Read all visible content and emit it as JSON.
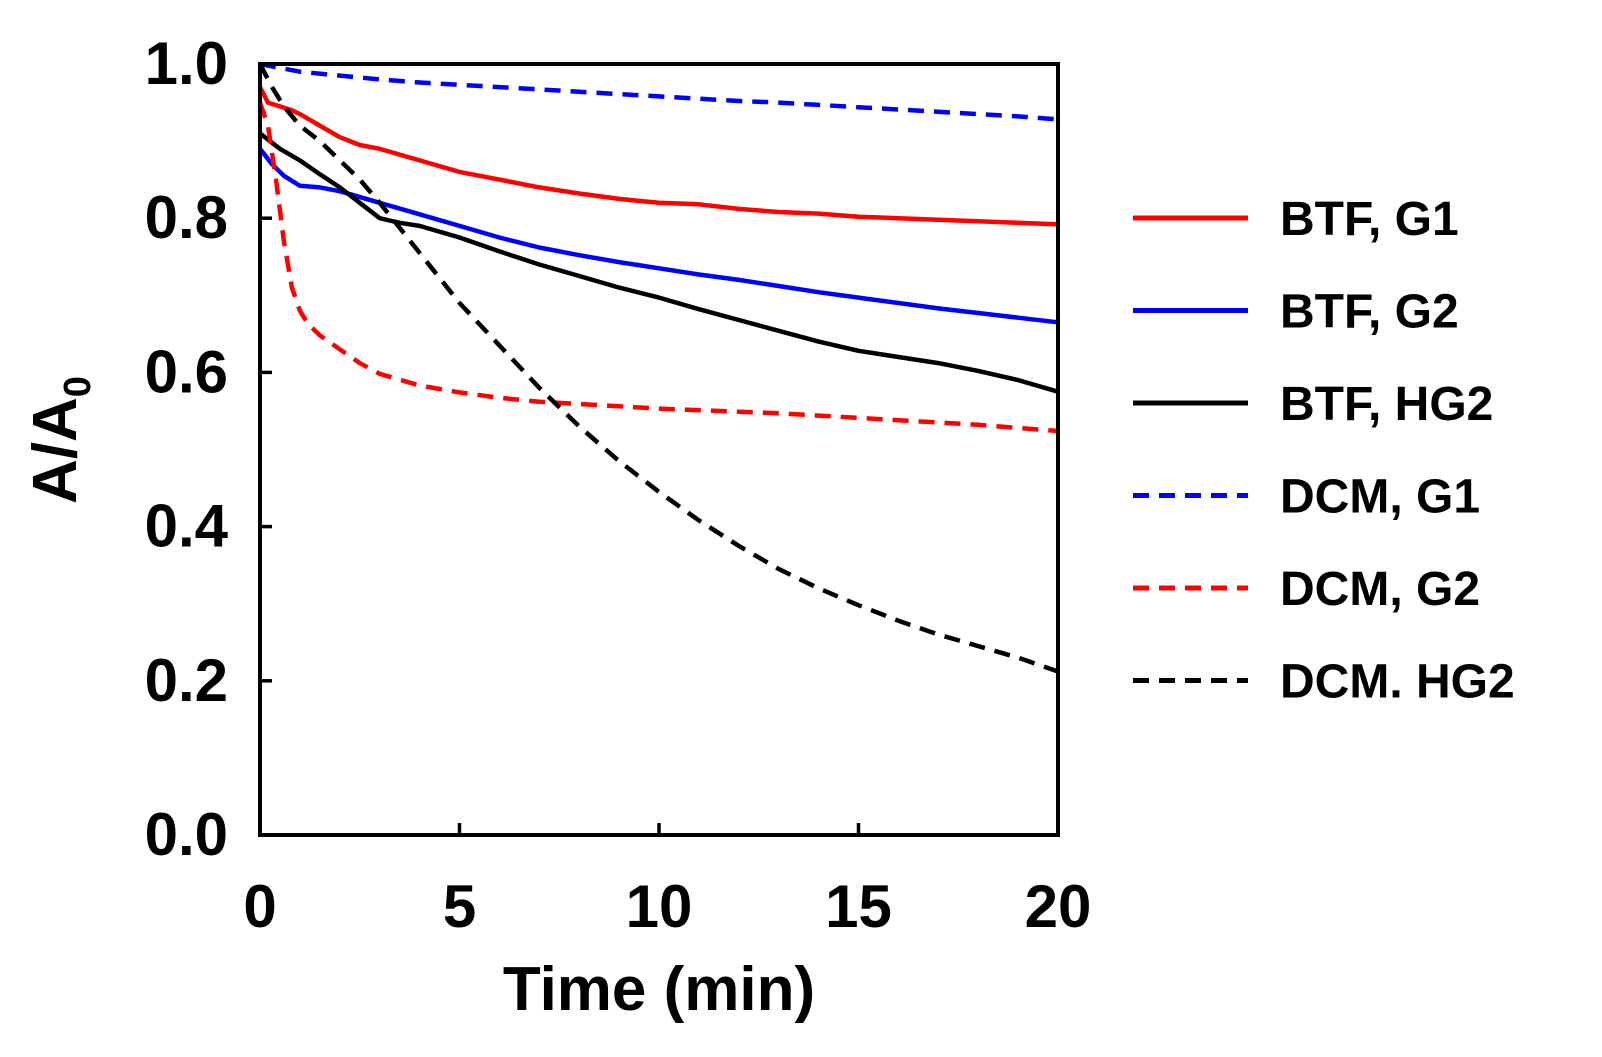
{
  "chart_data": {
    "type": "line",
    "title": "",
    "xlabel": "Time (min)",
    "ylabel_main": "A/A",
    "ylabel_sub": "0",
    "xlim": [
      0,
      20
    ],
    "ylim": [
      0,
      1.0
    ],
    "xticks": [
      0,
      5,
      10,
      15,
      20
    ],
    "xtick_labels": [
      "0",
      "5",
      "10",
      "15",
      "20"
    ],
    "yticks": [
      0,
      0.2,
      0.4,
      0.6,
      0.8,
      1.0
    ],
    "ytick_labels": [
      "0.0",
      "0.2",
      "0.4",
      "0.6",
      "0.8",
      "1.0"
    ],
    "grid": false,
    "legend_position": "right",
    "series": [
      {
        "name": "BTF, G1",
        "color": "#ff0000",
        "dash": "solid",
        "x": [
          0,
          0.2,
          0.5,
          0.8,
          1,
          1.5,
          2,
          2.5,
          3,
          4,
          5,
          6,
          7,
          8,
          9,
          10,
          11,
          12,
          13,
          14,
          15,
          16,
          17,
          18,
          19,
          20
        ],
        "y": [
          0.97,
          0.95,
          0.945,
          0.94,
          0.935,
          0.92,
          0.905,
          0.895,
          0.89,
          0.875,
          0.86,
          0.85,
          0.84,
          0.832,
          0.825,
          0.82,
          0.818,
          0.812,
          0.808,
          0.806,
          0.802,
          0.8,
          0.798,
          0.796,
          0.794,
          0.792
        ]
      },
      {
        "name": "BTF, G2",
        "color": "#0000ff",
        "dash": "solid",
        "x": [
          0,
          0.3,
          0.6,
          1,
          1.5,
          2,
          3,
          4,
          5,
          6,
          7,
          8,
          9,
          10,
          11,
          12,
          13,
          14,
          15,
          16,
          17,
          18,
          19,
          20
        ],
        "y": [
          0.89,
          0.87,
          0.855,
          0.842,
          0.84,
          0.835,
          0.82,
          0.805,
          0.79,
          0.775,
          0.762,
          0.752,
          0.743,
          0.735,
          0.727,
          0.72,
          0.712,
          0.704,
          0.697,
          0.69,
          0.683,
          0.677,
          0.671,
          0.665
        ]
      },
      {
        "name": "BTF, HG2",
        "color": "#000000",
        "dash": "solid",
        "x": [
          0,
          0.5,
          1,
          1.5,
          2,
          2.5,
          3,
          3.5,
          4,
          5,
          6,
          7,
          8,
          9,
          10,
          11,
          12,
          13,
          14,
          15,
          16,
          17,
          18,
          19,
          20
        ],
        "y": [
          0.91,
          0.89,
          0.875,
          0.857,
          0.84,
          0.82,
          0.8,
          0.794,
          0.79,
          0.775,
          0.757,
          0.74,
          0.725,
          0.71,
          0.697,
          0.682,
          0.668,
          0.654,
          0.64,
          0.628,
          0.62,
          0.612,
          0.602,
          0.59,
          0.575
        ]
      },
      {
        "name": "DCM, G1",
        "color": "#0000ff",
        "dash": "dashed",
        "x": [
          0,
          0.5,
          1,
          2,
          3,
          4,
          5,
          6,
          7,
          8,
          9,
          10,
          11,
          12,
          13,
          14,
          15,
          16,
          17,
          18,
          19,
          20
        ],
        "y": [
          1.0,
          0.995,
          0.99,
          0.985,
          0.98,
          0.976,
          0.973,
          0.97,
          0.967,
          0.964,
          0.961,
          0.958,
          0.955,
          0.952,
          0.95,
          0.947,
          0.944,
          0.941,
          0.938,
          0.935,
          0.932,
          0.928
        ]
      },
      {
        "name": "DCM, G2",
        "color": "#ff0000",
        "dash": "dashed",
        "x": [
          0,
          0.2,
          0.4,
          0.6,
          0.8,
          1,
          1.2,
          1.5,
          2,
          2.5,
          3,
          4,
          5,
          6,
          7,
          8,
          9,
          10,
          11,
          12,
          13,
          14,
          15,
          16,
          17,
          18,
          19,
          20
        ],
        "y": [
          0.95,
          0.92,
          0.85,
          0.77,
          0.71,
          0.68,
          0.663,
          0.648,
          0.63,
          0.612,
          0.598,
          0.583,
          0.574,
          0.567,
          0.562,
          0.559,
          0.556,
          0.553,
          0.551,
          0.549,
          0.547,
          0.544,
          0.541,
          0.538,
          0.535,
          0.532,
          0.528,
          0.524
        ]
      },
      {
        "name": "DCM. HG2",
        "color": "#000000",
        "dash": "dashed",
        "x": [
          0,
          0.3,
          0.6,
          1,
          1.5,
          2,
          2.5,
          3,
          4,
          5,
          6,
          7,
          8,
          9,
          10,
          11,
          12,
          13,
          14,
          15,
          16,
          17,
          18,
          19,
          20
        ],
        "y": [
          1.0,
          0.97,
          0.945,
          0.92,
          0.9,
          0.875,
          0.85,
          0.82,
          0.755,
          0.69,
          0.635,
          0.58,
          0.53,
          0.485,
          0.445,
          0.408,
          0.375,
          0.345,
          0.32,
          0.298,
          0.278,
          0.26,
          0.245,
          0.23,
          0.212
        ]
      }
    ]
  }
}
